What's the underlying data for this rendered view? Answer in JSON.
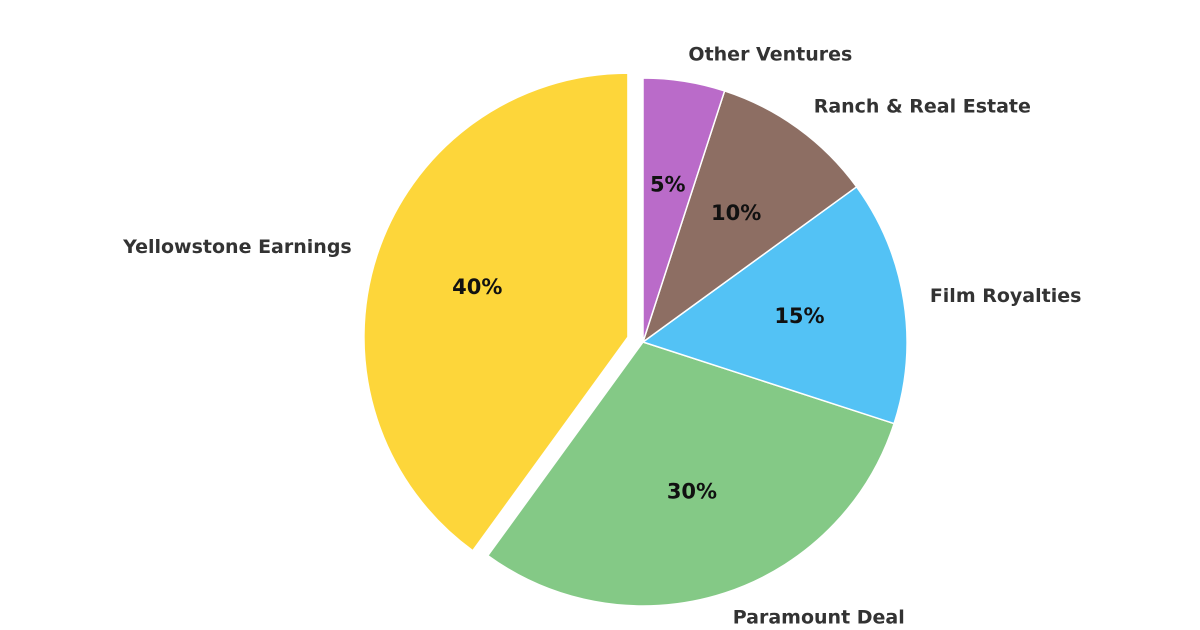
{
  "chart_data": {
    "type": "pie",
    "categories": [
      "Yellowstone Earnings",
      "Paramount Deal",
      "Film Royalties",
      "Ranch & Real Estate",
      "Other Ventures"
    ],
    "values": [
      40,
      30,
      15,
      10,
      5
    ],
    "value_labels": [
      "40%",
      "30%",
      "15%",
      "10%",
      "5%"
    ],
    "colors": [
      "#FDD63A",
      "#84C986",
      "#53C2F5",
      "#8D6E63",
      "#BA6BC9"
    ],
    "explode": [
      0.06,
      0,
      0,
      0,
      0
    ],
    "start_angle": 90,
    "direction": "counterclockwise"
  }
}
